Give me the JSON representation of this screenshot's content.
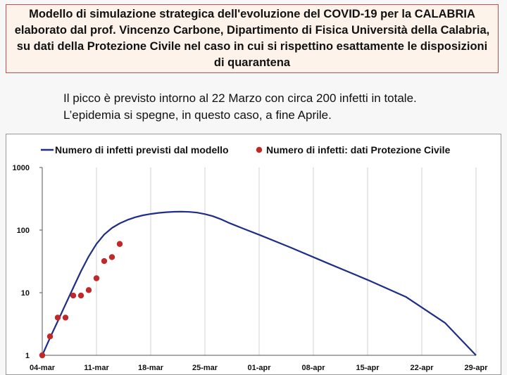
{
  "header": {
    "title_lines": [
      "Modello di simulazione strategica dell'evoluzione del COVID-19 per la CALABRIA",
      "elaborato dal prof. Vincenzo Carbone, Dipartimento di Fisica Università della Calabria,",
      "su dati della Protezione Civile nel caso in cui si rispettino esattamente le disposizioni",
      "di quarantena"
    ]
  },
  "description": {
    "line1": "Il picco è previsto intorno al 22 Marzo con circa 200 infetti in totale.",
    "line2": "L’epidemia si spegne, in questo caso, a fine Aprile."
  },
  "chart_data": {
    "type": "line",
    "y_scale": "log",
    "ylim": [
      1,
      1000
    ],
    "y_ticks": [
      "1",
      "10",
      "100",
      "1000"
    ],
    "x_ticks": [
      "04-mar",
      "11-mar",
      "18-mar",
      "25-mar",
      "01-apr",
      "08-apr",
      "15-apr",
      "22-apr",
      "29-apr"
    ],
    "x_range": [
      "2020-03-04",
      "2020-04-29"
    ],
    "grid": "vertical",
    "legend_position": "top",
    "series": [
      {
        "name": "Numero di infetti previsti dal modello",
        "kind": "line",
        "color": "#1f2d86",
        "points": [
          [
            "2020-03-04",
            1
          ],
          [
            "2020-03-05",
            1.9
          ],
          [
            "2020-03-06",
            3.5
          ],
          [
            "2020-03-07",
            6.5
          ],
          [
            "2020-03-08",
            12
          ],
          [
            "2020-03-09",
            22
          ],
          [
            "2020-03-10",
            38
          ],
          [
            "2020-03-11",
            60
          ],
          [
            "2020-03-12",
            85
          ],
          [
            "2020-03-13",
            108
          ],
          [
            "2020-03-14",
            128
          ],
          [
            "2020-03-15",
            145
          ],
          [
            "2020-03-16",
            160
          ],
          [
            "2020-03-17",
            172
          ],
          [
            "2020-03-18",
            181
          ],
          [
            "2020-03-19",
            188
          ],
          [
            "2020-03-20",
            193
          ],
          [
            "2020-03-21",
            196
          ],
          [
            "2020-03-22",
            197
          ],
          [
            "2020-03-23",
            195
          ],
          [
            "2020-03-24",
            190
          ],
          [
            "2020-03-25",
            180
          ],
          [
            "2020-03-26",
            167
          ],
          [
            "2020-03-27",
            150
          ],
          [
            "2020-03-28",
            132
          ],
          [
            "2020-03-30",
            105
          ],
          [
            "2020-04-01",
            84
          ],
          [
            "2020-04-05",
            53
          ],
          [
            "2020-04-10",
            29
          ],
          [
            "2020-04-15",
            16
          ],
          [
            "2020-04-20",
            8.5
          ],
          [
            "2020-04-25",
            3.3
          ],
          [
            "2020-04-29",
            1
          ]
        ]
      },
      {
        "name": "Numero di infetti: dati Protezione Civile",
        "kind": "scatter",
        "color": "#c0282a",
        "points": [
          [
            "2020-03-04",
            1
          ],
          [
            "2020-03-05",
            2
          ],
          [
            "2020-03-06",
            4
          ],
          [
            "2020-03-07",
            4
          ],
          [
            "2020-03-08",
            9
          ],
          [
            "2020-03-09",
            9
          ],
          [
            "2020-03-10",
            11
          ],
          [
            "2020-03-11",
            17
          ],
          [
            "2020-03-12",
            32
          ],
          [
            "2020-03-13",
            37
          ],
          [
            "2020-03-14",
            60
          ]
        ]
      }
    ]
  }
}
